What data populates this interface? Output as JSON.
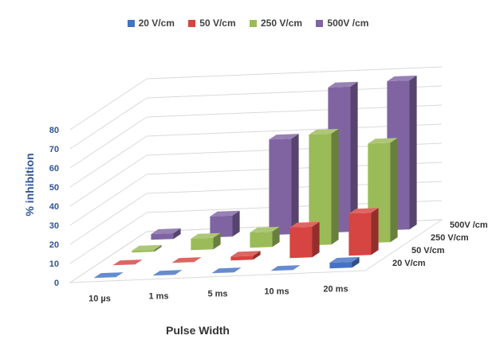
{
  "chart_data": {
    "type": "bar",
    "subtype": "3d-column",
    "title": "",
    "xlabel": "Pulse Width",
    "ylabel": "% inhibition",
    "categories": [
      "10 µs",
      "1 ms",
      "5 ms",
      "10 ms",
      "20 ms"
    ],
    "series": [
      {
        "name": "20 V/cm",
        "depth_label": "20 V/cm",
        "color": "#4472C4",
        "values": [
          0,
          0,
          0,
          0,
          3
        ]
      },
      {
        "name": "50 V/cm",
        "depth_label": "50 V/cm",
        "color": "#D64541",
        "values": [
          0,
          0,
          2,
          16,
          22
        ]
      },
      {
        "name": "250 V/cm",
        "depth_label": "250 V/cm",
        "color": "#9BBB59",
        "values": [
          1,
          6,
          8,
          58,
          52
        ]
      },
      {
        "name": "500V /cm",
        "depth_label": "500V /cm",
        "color": "#8064A2",
        "values": [
          3,
          11,
          50,
          76,
          78
        ]
      }
    ],
    "yticks": [
      0,
      10,
      20,
      30,
      40,
      50,
      60,
      70,
      80
    ],
    "ylim": [
      0,
      80
    ],
    "grid": true,
    "legend_position": "top"
  }
}
